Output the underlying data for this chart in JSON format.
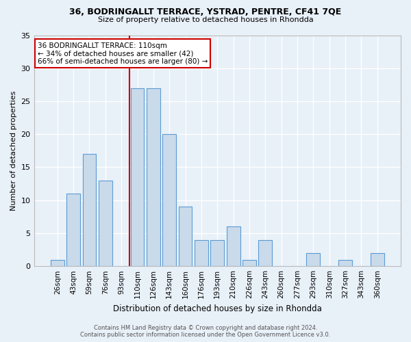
{
  "title1": "36, BODRINGALLT TERRACE, YSTRAD, PENTRE, CF41 7QE",
  "title2": "Size of property relative to detached houses in Rhondda",
  "xlabel": "Distribution of detached houses by size in Rhondda",
  "ylabel": "Number of detached properties",
  "categories": [
    "26sqm",
    "43sqm",
    "59sqm",
    "76sqm",
    "93sqm",
    "110sqm",
    "126sqm",
    "143sqm",
    "160sqm",
    "176sqm",
    "193sqm",
    "210sqm",
    "226sqm",
    "243sqm",
    "260sqm",
    "277sqm",
    "293sqm",
    "310sqm",
    "327sqm",
    "343sqm",
    "360sqm"
  ],
  "values": [
    1,
    11,
    17,
    13,
    0,
    27,
    27,
    20,
    9,
    4,
    4,
    6,
    1,
    4,
    0,
    0,
    2,
    0,
    1,
    0,
    2
  ],
  "bar_color": "#c9daea",
  "bar_edge_color": "#5b9bd5",
  "highlight_index": 5,
  "highlight_line_color": "#cc0000",
  "ylim": [
    0,
    35
  ],
  "yticks": [
    0,
    5,
    10,
    15,
    20,
    25,
    30,
    35
  ],
  "annotation_title": "36 BODRINGALLT TERRACE: 110sqm",
  "annotation_line1": "← 34% of detached houses are smaller (42)",
  "annotation_line2": "66% of semi-detached houses are larger (80) →",
  "annotation_box_color": "#ffffff",
  "annotation_box_edge": "#cc0000",
  "footer1": "Contains HM Land Registry data © Crown copyright and database right 2024.",
  "footer2": "Contains public sector information licensed under the Open Government Licence v3.0.",
  "bg_color": "#e8f0f8",
  "grid_color": "#ffffff",
  "spine_color": "#bbbbbb"
}
